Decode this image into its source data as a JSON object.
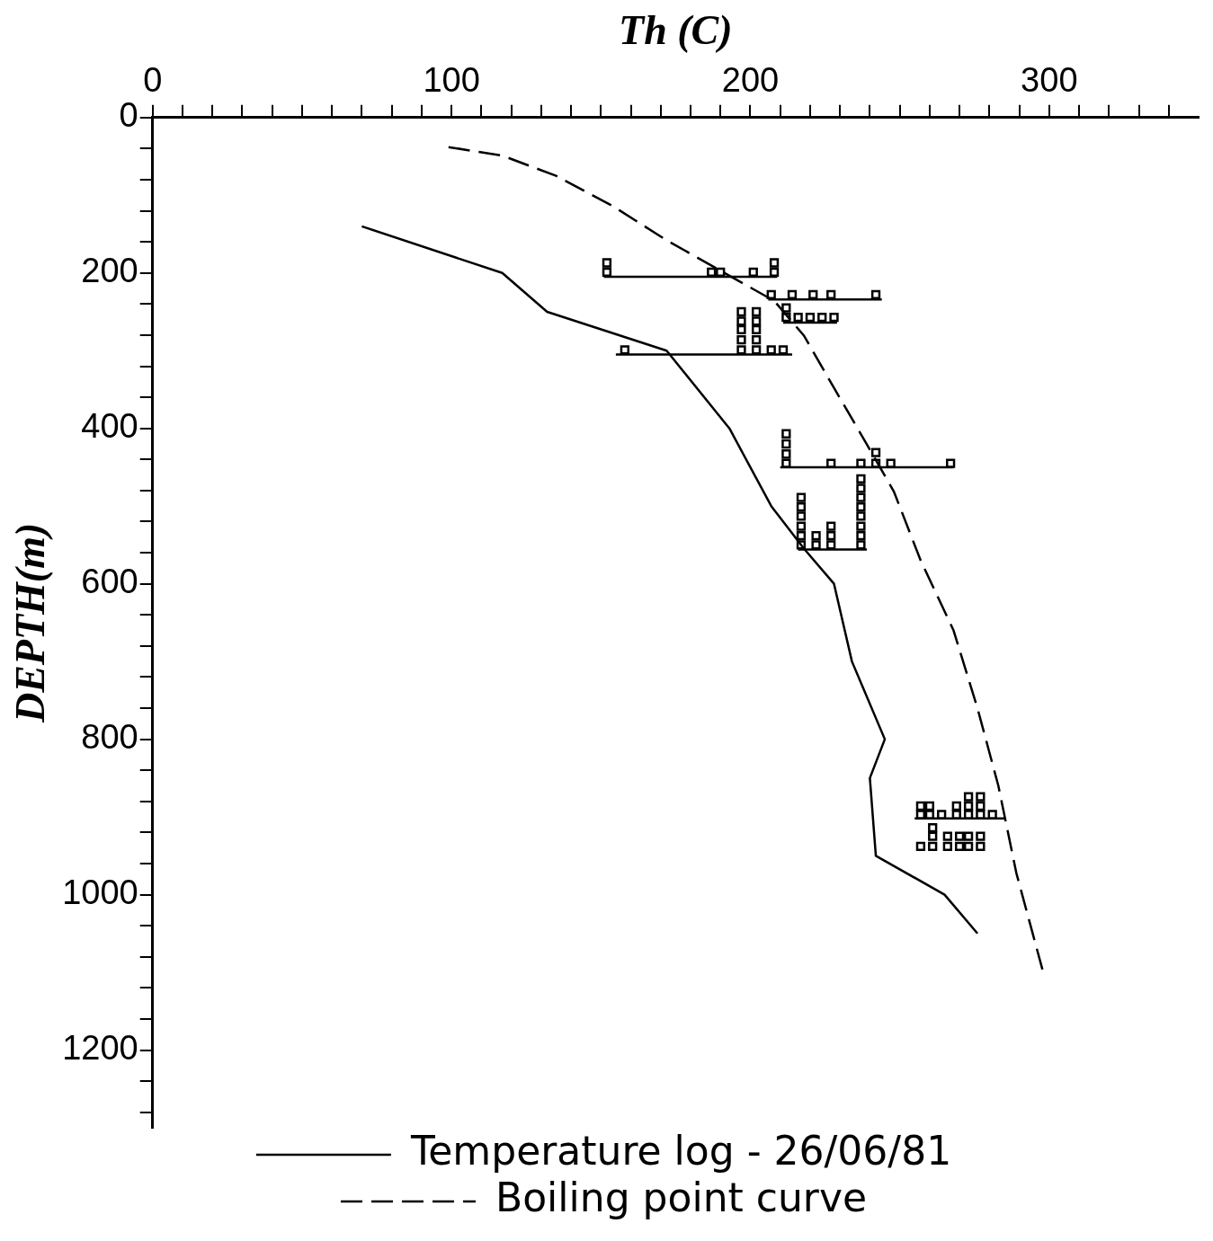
{
  "chart_data": {
    "type": "line",
    "xlabel": "Th (C)",
    "ylabel": "DEPTH(m)",
    "xlim": [
      0,
      350
    ],
    "ylim": [
      1300,
      0
    ],
    "xticks": [
      0,
      {
        "value": 10,
        "label": null
      },
      {
        "value": 20,
        "label": null
      },
      {
        "value": 30,
        "label": null
      },
      {
        "value": 40,
        "label": null
      },
      {
        "value": 50,
        "label": null
      },
      {
        "value": 60,
        "label": null
      },
      {
        "value": 70,
        "label": null
      },
      {
        "value": 80,
        "label": null
      },
      {
        "value": 90,
        "label": null
      },
      100,
      {
        "value": 110,
        "label": null
      },
      {
        "value": 120,
        "label": null
      },
      {
        "value": 130,
        "label": null
      },
      {
        "value": 140,
        "label": null
      },
      {
        "value": 150,
        "label": null
      },
      {
        "value": 160,
        "label": null
      },
      {
        "value": 170,
        "label": null
      },
      {
        "value": 180,
        "label": null
      },
      {
        "value": 190,
        "label": null
      },
      200,
      {
        "value": 210,
        "label": null
      },
      {
        "value": 220,
        "label": null
      },
      {
        "value": 230,
        "label": null
      },
      {
        "value": 240,
        "label": null
      },
      {
        "value": 250,
        "label": null
      },
      {
        "value": 260,
        "label": null
      },
      {
        "value": 270,
        "label": null
      },
      {
        "value": 280,
        "label": null
      },
      {
        "value": 290,
        "label": null
      },
      300,
      {
        "value": 310,
        "label": null
      },
      {
        "value": 320,
        "label": null
      },
      {
        "value": 330,
        "label": null
      },
      {
        "value": 340,
        "label": null
      }
    ],
    "yticks": [
      0,
      {
        "value": 40,
        "label": null
      },
      {
        "value": 80,
        "label": null
      },
      {
        "value": 120,
        "label": null
      },
      {
        "value": 160,
        "label": null
      },
      200,
      {
        "value": 240,
        "label": null
      },
      {
        "value": 280,
        "label": null
      },
      {
        "value": 320,
        "label": null
      },
      {
        "value": 360,
        "label": null
      },
      400,
      {
        "value": 440,
        "label": null
      },
      {
        "value": 480,
        "label": null
      },
      {
        "value": 520,
        "label": null
      },
      {
        "value": 560,
        "label": null
      },
      600,
      {
        "value": 640,
        "label": null
      },
      {
        "value": 680,
        "label": null
      },
      {
        "value": 720,
        "label": null
      },
      {
        "value": 760,
        "label": null
      },
      800,
      {
        "value": 840,
        "label": null
      },
      {
        "value": 880,
        "label": null
      },
      {
        "value": 920,
        "label": null
      },
      {
        "value": 960,
        "label": null
      },
      1000,
      {
        "value": 1040,
        "label": null
      },
      {
        "value": 1080,
        "label": null
      },
      {
        "value": 1120,
        "label": null
      },
      {
        "value": 1160,
        "label": null
      },
      1200,
      {
        "value": 1240,
        "label": null
      },
      {
        "value": 1280,
        "label": null
      }
    ],
    "grid": false,
    "legend": "bottom",
    "series": [
      {
        "name": "Temperature log - 26/06/81",
        "type": "line",
        "color": "#000000",
        "marker": "none",
        "line_style": "solid",
        "x": [
          70,
          117,
          132,
          172,
          193,
          207,
          218,
          228,
          234,
          245,
          240,
          242,
          265,
          276
        ],
        "values": [
          140,
          200,
          250,
          300,
          400,
          500,
          555,
          600,
          700,
          800,
          850,
          950,
          1000,
          1050
        ]
      },
      {
        "name": "Boiling point curve",
        "type": "line",
        "color": "#000000",
        "marker": "none",
        "line_style": "dashed",
        "x": [
          99,
          117,
          135,
          154,
          172,
          190,
          208,
          218,
          228,
          238,
          248,
          257,
          268,
          276,
          283,
          289,
          298
        ],
        "values": [
          38,
          49,
          75,
          114,
          158,
          197,
          236,
          281,
          348,
          414,
          481,
          570,
          660,
          760,
          860,
          972,
          1100
        ]
      },
      {
        "type": "scatter",
        "color": "#000000",
        "marker": "square",
        "x": [
          152,
          152,
          187,
          190,
          201,
          208,
          208,
          207,
          214,
          221,
          227,
          242,
          212,
          212,
          216,
          220,
          224,
          228,
          158,
          197,
          197,
          197,
          197,
          197,
          202,
          202,
          202,
          202,
          202,
          207,
          211,
          212,
          212,
          212,
          212,
          227,
          237,
          242,
          242,
          247,
          267,
          217,
          217,
          217,
          217,
          217,
          217,
          222,
          222,
          227,
          227,
          227,
          237,
          237,
          237,
          237,
          237,
          237,
          237,
          237,
          257,
          257,
          260,
          260,
          264,
          269,
          269,
          273,
          273,
          273,
          277,
          277,
          277,
          281,
          257,
          261,
          261,
          261,
          266,
          266,
          270,
          270,
          273,
          273,
          277,
          277
        ],
        "values": [
          199,
          187,
          199,
          199,
          199,
          199,
          187,
          228,
          228,
          228,
          228,
          228,
          257,
          245,
          257,
          257,
          257,
          257,
          299,
          299,
          286,
          273,
          262,
          250,
          299,
          286,
          273,
          262,
          250,
          299,
          299,
          445,
          433,
          420,
          407,
          445,
          445,
          445,
          431,
          445,
          445,
          550,
          538,
          526,
          513,
          501,
          489,
          550,
          538,
          550,
          538,
          526,
          550,
          538,
          526,
          513,
          501,
          489,
          477,
          465,
          897,
          886,
          897,
          886,
          897,
          897,
          886,
          897,
          886,
          874,
          897,
          886,
          874,
          897,
          938,
          938,
          925,
          914,
          938,
          925,
          938,
          925,
          938,
          925,
          938,
          925
        ]
      },
      {
        "type": "line",
        "color": "#000000",
        "marker": "none",
        "line_style": "solid",
        "x": [
          151,
          209
        ],
        "values": [
          205,
          205
        ]
      },
      {
        "type": "line",
        "color": "#000000",
        "marker": "none",
        "line_style": "solid",
        "x": [
          206,
          244
        ],
        "values": [
          234,
          234
        ]
      },
      {
        "type": "line",
        "color": "#000000",
        "marker": "none",
        "line_style": "solid",
        "x": [
          211,
          229
        ],
        "values": [
          264,
          264
        ]
      },
      {
        "type": "line",
        "color": "#000000",
        "marker": "none",
        "line_style": "solid",
        "x": [
          155,
          214
        ],
        "values": [
          305,
          305
        ]
      },
      {
        "type": "line",
        "color": "#000000",
        "marker": "none",
        "line_style": "solid",
        "x": [
          210,
          268
        ],
        "values": [
          450,
          450
        ]
      },
      {
        "type": "line",
        "color": "#000000",
        "marker": "none",
        "line_style": "solid",
        "x": [
          216,
          239
        ],
        "values": [
          556,
          556
        ]
      },
      {
        "type": "line",
        "color": "#000000",
        "marker": "none",
        "line_style": "solid",
        "x": [
          255,
          285
        ],
        "values": [
          902,
          902
        ]
      }
    ]
  }
}
